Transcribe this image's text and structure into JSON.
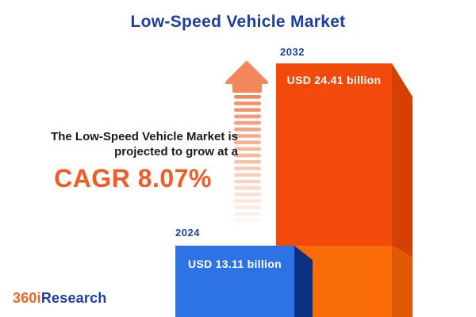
{
  "title": "Low-Speed Vehicle Market",
  "annotation": {
    "line1": "The Low-Speed Vehicle Market is",
    "line2": "projected to grow at a",
    "cagr": "CAGR 8.07%"
  },
  "bars": [
    {
      "year": "2024",
      "value_label": "USD 13.11 billion"
    },
    {
      "year": "2032",
      "value_label": "USD 24.41 billion"
    }
  ],
  "logo": {
    "prefix": "360i",
    "suffix": "Research"
  },
  "colors": {
    "title_blue": "#1E3EA1",
    "accent_orange": "#F15B25",
    "text_dark": "#1A1A1A",
    "background": "#FFFFFF",
    "bar_2032_face": "#F24A0B",
    "bar_2032_side": "#D54104",
    "bar_2032_lower_face": "#FA6B09",
    "bar_2032_lower_side": "#E25905",
    "bar_2024_face": "#2E73E5",
    "bar_2024_side": "#0C3184",
    "arrow_orange": "#F2875A",
    "logo_orange": "#F26522",
    "value_text": "#FFFFFF"
  },
  "chart_data": {
    "type": "bar",
    "title": "Low-Speed Vehicle Market",
    "categories": [
      "2024",
      "2032"
    ],
    "values": [
      13.11,
      24.41
    ],
    "unit": "USD billion",
    "value_labels": [
      "USD 13.11 billion",
      "USD 24.41 billion"
    ],
    "annotations": [
      "The Low-Speed Vehicle Market is projected to grow at a CAGR 8.07%"
    ],
    "cagr_percent": 8.07,
    "orientation": "vertical",
    "grid": false,
    "legend": false,
    "style": "3d-infographic-bars-with-growth-arrow"
  }
}
